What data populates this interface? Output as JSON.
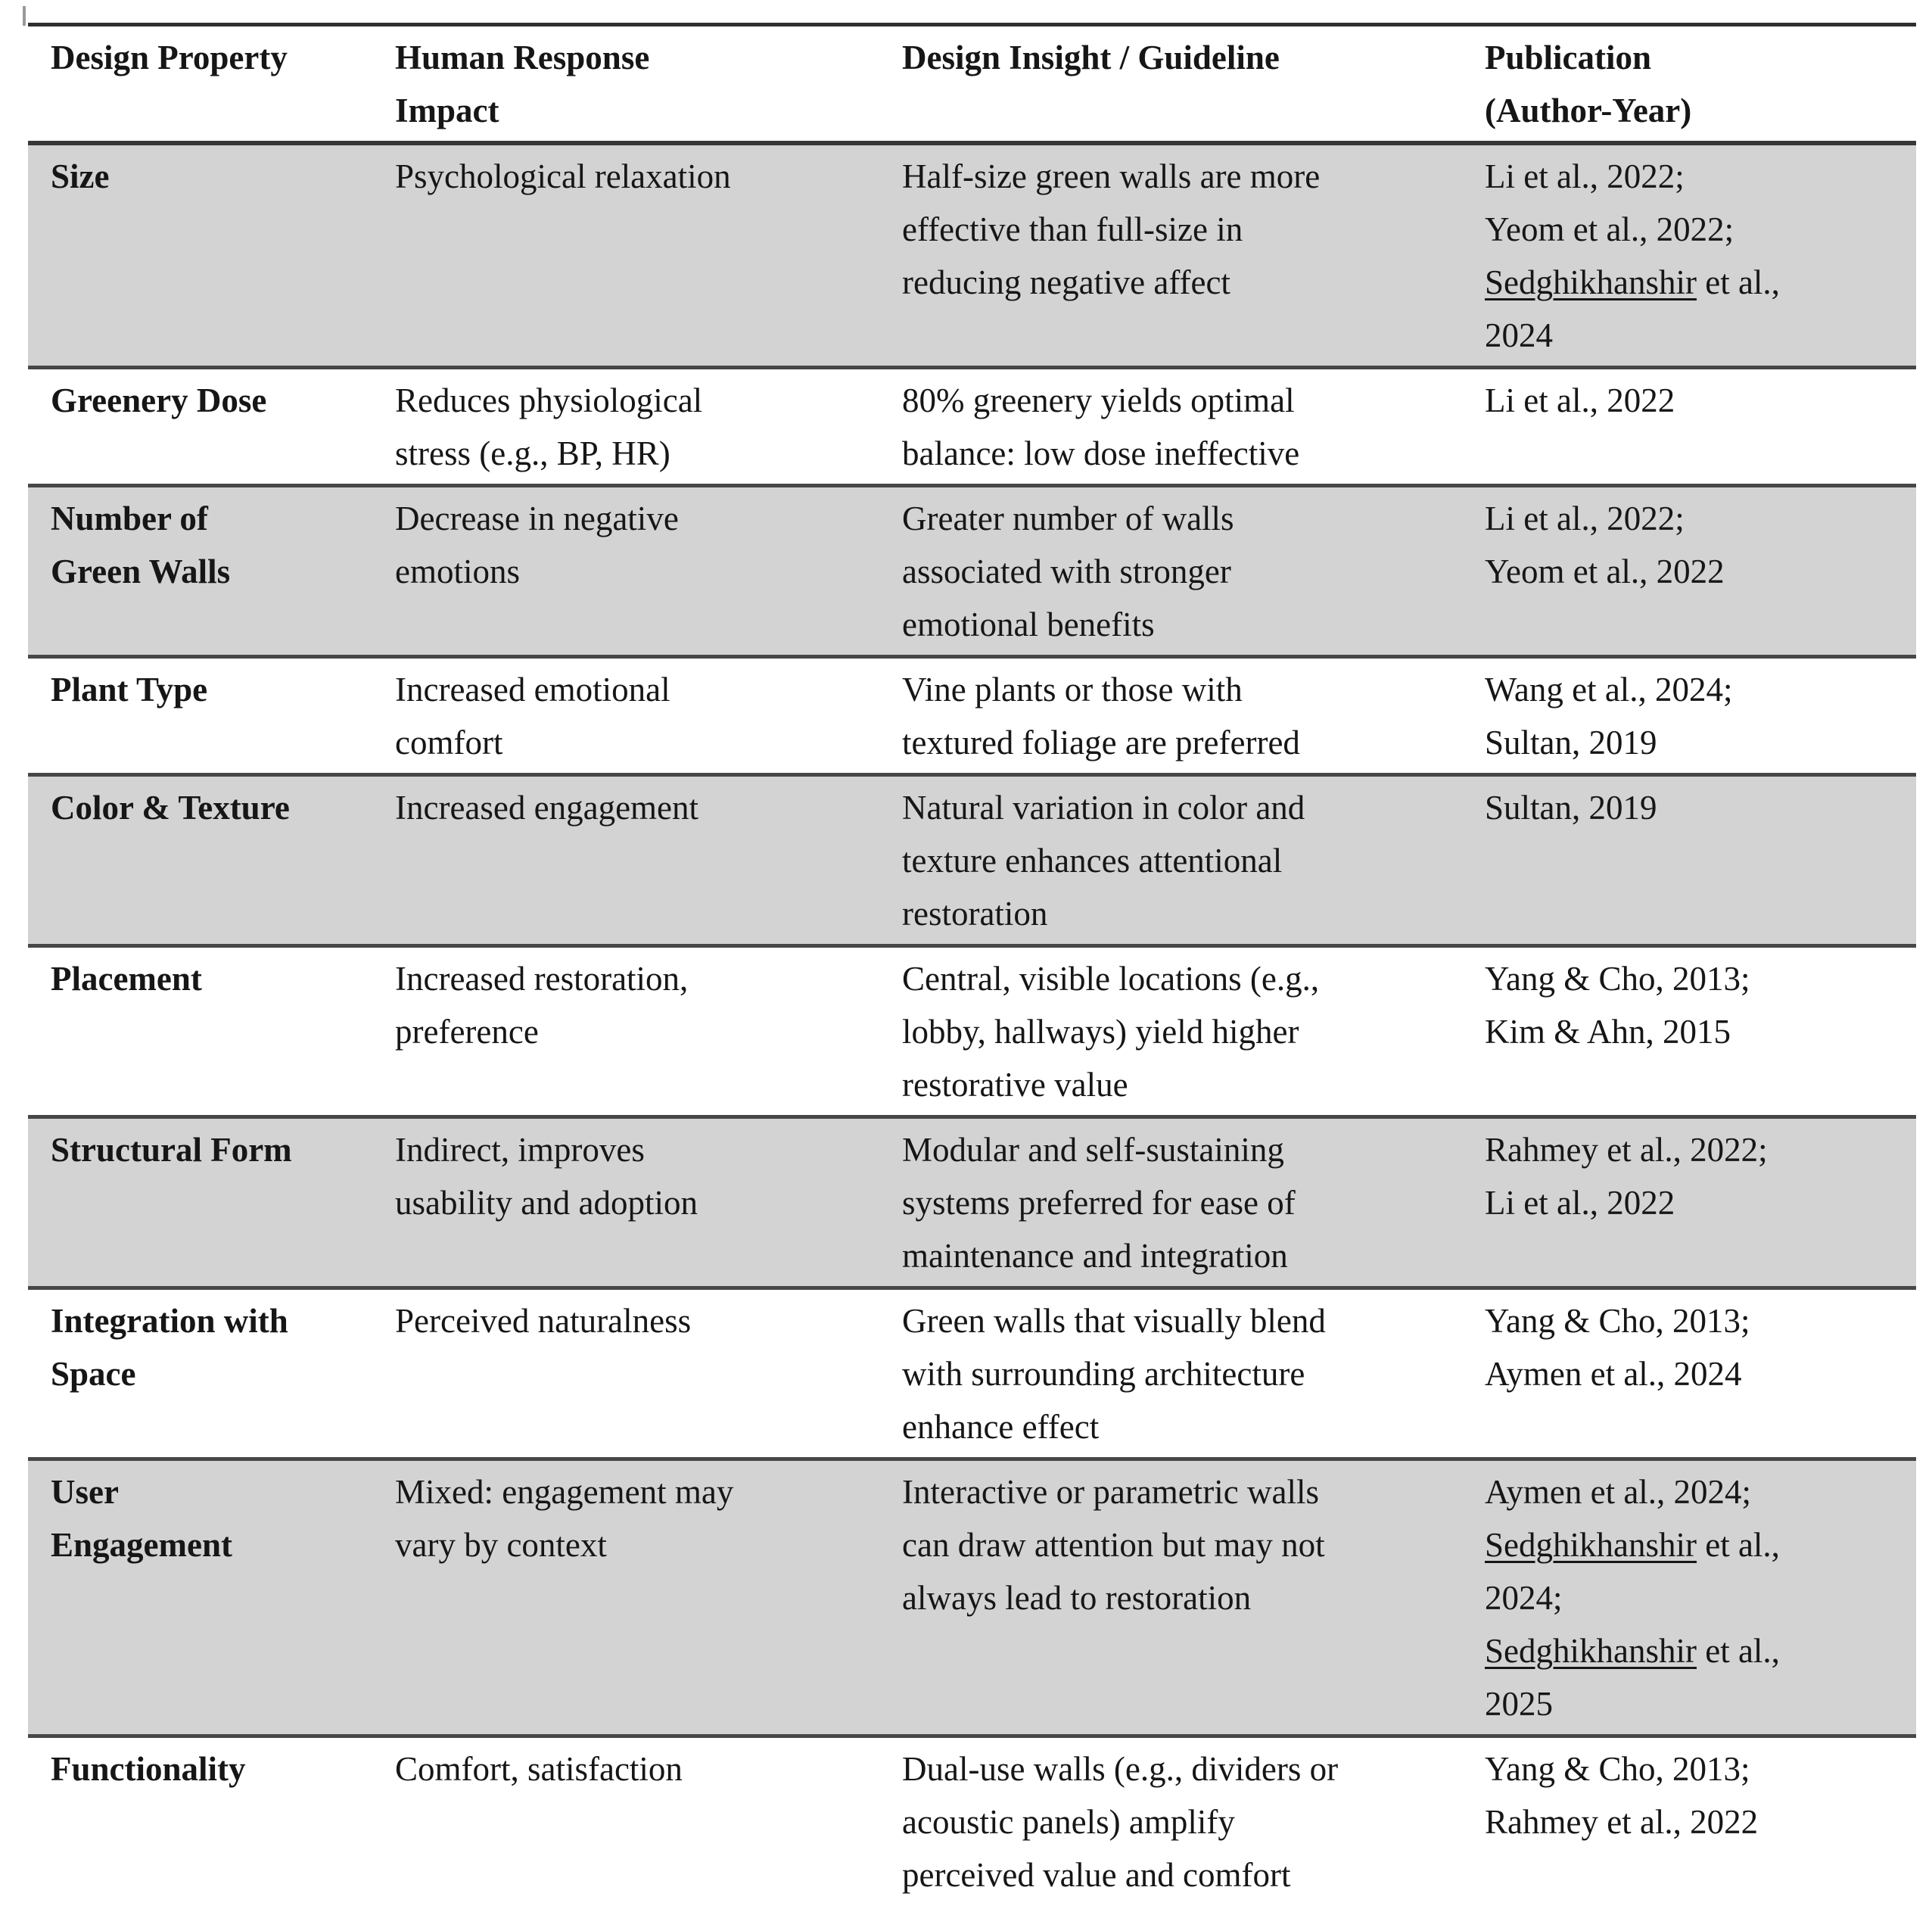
{
  "table": {
    "underline_term": "Sedghikhanshir",
    "header": {
      "design_property": [
        "Design Property"
      ],
      "human_response": [
        "Human Response",
        "Impact"
      ],
      "design_insight": [
        "Design Insight / Guideline"
      ],
      "publication": [
        "Publication",
        "(Author-Year)"
      ]
    },
    "rows": [
      {
        "property": [
          "Size"
        ],
        "impact": [
          "Psychological relaxation"
        ],
        "insight": [
          "Half-size green walls are more",
          "effective than full-size in",
          "reducing negative affect"
        ],
        "publication": [
          "Li et al., 2022;",
          "Yeom et al., 2022;",
          "Sedghikhanshir et al.,",
          "2024"
        ]
      },
      {
        "property": [
          "Greenery Dose"
        ],
        "impact": [
          "Reduces physiological",
          "stress (e.g., BP, HR)"
        ],
        "insight": [
          "80% greenery yields optimal",
          "balance: low dose ineffective"
        ],
        "publication": [
          "Li et al., 2022"
        ]
      },
      {
        "property": [
          "Number of",
          "Green Walls"
        ],
        "impact": [
          "Decrease in negative",
          "emotions"
        ],
        "insight": [
          "Greater number of walls",
          "associated with stronger",
          "emotional benefits"
        ],
        "publication": [
          "Li et al., 2022;",
          "Yeom et al., 2022"
        ]
      },
      {
        "property": [
          "Plant Type"
        ],
        "impact": [
          "Increased emotional",
          "comfort"
        ],
        "insight": [
          "Vine plants or those with",
          "textured foliage are preferred"
        ],
        "publication": [
          "Wang et al., 2024;",
          "Sultan, 2019"
        ]
      },
      {
        "property": [
          "Color & Texture"
        ],
        "impact": [
          "Increased engagement"
        ],
        "insight": [
          "Natural variation in color and",
          "texture enhances attentional",
          "restoration"
        ],
        "publication": [
          "Sultan, 2019"
        ]
      },
      {
        "property": [
          "Placement"
        ],
        "impact": [
          "Increased restoration,",
          "preference"
        ],
        "insight": [
          "Central, visible locations (e.g.,",
          "lobby, hallways) yield higher",
          "restorative value"
        ],
        "publication": [
          "Yang & Cho, 2013;",
          "Kim & Ahn, 2015"
        ]
      },
      {
        "property": [
          "Structural Form"
        ],
        "impact": [
          "Indirect, improves",
          "usability and adoption"
        ],
        "insight": [
          "Modular and self-sustaining",
          "systems preferred for ease of",
          "maintenance and integration"
        ],
        "publication": [
          "Rahmey et al., 2022;",
          "Li et al., 2022"
        ]
      },
      {
        "property": [
          "Integration with",
          "Space"
        ],
        "impact": [
          "Perceived naturalness"
        ],
        "insight": [
          "Green walls that visually blend",
          "with surrounding architecture",
          "enhance effect"
        ],
        "publication": [
          "Yang & Cho, 2013;",
          "Aymen et al., 2024"
        ]
      },
      {
        "property": [
          "User",
          "Engagement"
        ],
        "impact": [
          "Mixed: engagement may",
          "vary by context"
        ],
        "insight": [
          "Interactive or parametric walls",
          "can draw attention but may not",
          "always lead to restoration"
        ],
        "publication": [
          "Aymen et al., 2024;",
          "Sedghikhanshir et al.,",
          "2024;",
          "Sedghikhanshir et al.,",
          "2025"
        ]
      },
      {
        "property": [
          "Functionality"
        ],
        "impact": [
          "Comfort, satisfaction"
        ],
        "insight": [
          "Dual-use walls (e.g., dividers or",
          "acoustic panels) amplify",
          "perceived value and comfort"
        ],
        "publication": [
          "Yang & Cho, 2013;",
          "Rahmey et al., 2022"
        ]
      }
    ]
  }
}
